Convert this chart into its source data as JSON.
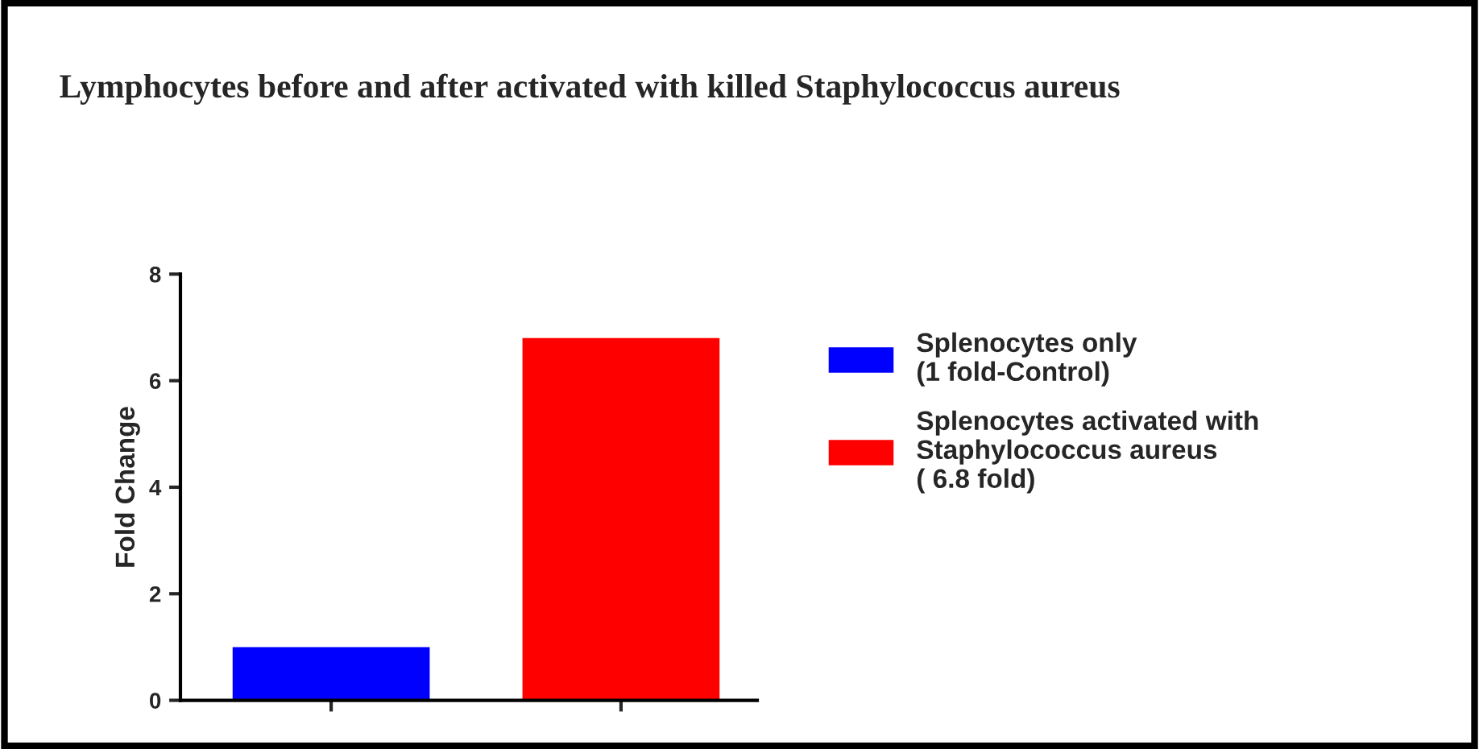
{
  "chart_data": {
    "type": "bar",
    "title": "Lymphocytes before and after activated with killed Staphylococcus aureus",
    "ylabel": "Fold Change",
    "categories": [
      null,
      null
    ],
    "series": [
      {
        "name": "Splenocytes only\n(1 fold-Control)",
        "color": "#0000ff",
        "values": [
          1,
          null
        ]
      },
      {
        "name": "Splenocytes activated with\nStaphylococcus aureus\n( 6.8 fold)",
        "color": "#ff0000",
        "values": [
          null,
          6.8
        ]
      }
    ],
    "ylim": [
      0,
      8
    ],
    "yticks": [
      0,
      2,
      4,
      6,
      8
    ],
    "tick_labels": "y",
    "legend": "right",
    "grid": false
  }
}
